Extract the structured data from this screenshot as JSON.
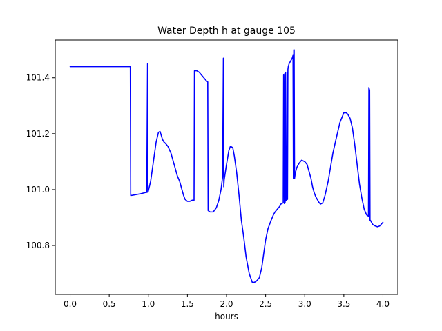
{
  "chart_data": {
    "type": "line",
    "title": "Water Depth h at gauge 105",
    "xlabel": "hours",
    "ylabel": "",
    "xlim": [
      -0.19,
      4.19
    ],
    "ylim": [
      100.625,
      101.535
    ],
    "xticks": [
      0.0,
      0.5,
      1.0,
      1.5,
      2.0,
      2.5,
      3.0,
      3.5,
      4.0
    ],
    "xtick_labels": [
      "0.0",
      "0.5",
      "1.0",
      "1.5",
      "2.0",
      "2.5",
      "3.0",
      "3.5",
      "4.0"
    ],
    "yticks": [
      100.8,
      101.0,
      101.2,
      101.4
    ],
    "ytick_labels": [
      "100.8",
      "101.0",
      "101.2",
      "101.4"
    ],
    "grid": false,
    "series": [
      {
        "name": "",
        "color": "#0000ff",
        "x": [
          0.0,
          0.4,
          0.6,
          0.77,
          0.775,
          0.8,
          0.9,
          0.97,
          0.98,
          0.99,
          0.995,
          1.0,
          1.03,
          1.07,
          1.1,
          1.13,
          1.15,
          1.17,
          1.18,
          1.2,
          1.22,
          1.25,
          1.29,
          1.33,
          1.37,
          1.4,
          1.42,
          1.45,
          1.47,
          1.5,
          1.53,
          1.56,
          1.585,
          1.59,
          1.62,
          1.65,
          1.68,
          1.71,
          1.74,
          1.76,
          1.765,
          1.79,
          1.83,
          1.87,
          1.9,
          1.93,
          1.95,
          1.96,
          1.965,
          1.97,
          2.0,
          2.03,
          2.05,
          2.08,
          2.1,
          2.13,
          2.16,
          2.19,
          2.22,
          2.25,
          2.29,
          2.33,
          2.35,
          2.37,
          2.39,
          2.42,
          2.45,
          2.48,
          2.5,
          2.53,
          2.57,
          2.6,
          2.62,
          2.65,
          2.68,
          2.7,
          2.725,
          2.73,
          2.74,
          2.745,
          2.75,
          2.755,
          2.76,
          2.77,
          2.775,
          2.78,
          2.785,
          2.79,
          2.8,
          2.82,
          2.84,
          2.85,
          2.855,
          2.86,
          2.865,
          2.87,
          2.875,
          2.88,
          2.89,
          2.9,
          2.93,
          2.96,
          3.0,
          3.03,
          3.06,
          3.08,
          3.1,
          3.12,
          3.14,
          3.16,
          3.18,
          3.2,
          3.23,
          3.26,
          3.3,
          3.33,
          3.36,
          3.4,
          3.45,
          3.5,
          3.53,
          3.55,
          3.58,
          3.61,
          3.64,
          3.67,
          3.7,
          3.73,
          3.76,
          3.79,
          3.815,
          3.82,
          3.825,
          3.83,
          3.835,
          3.84,
          3.85,
          3.87,
          3.9,
          3.93,
          3.96,
          4.0
        ],
        "y": [
          101.44,
          101.44,
          101.44,
          101.44,
          100.979,
          100.98,
          100.985,
          100.99,
          100.99,
          101.45,
          100.99,
          100.995,
          101.03,
          101.11,
          101.17,
          101.205,
          101.208,
          101.19,
          101.18,
          101.17,
          101.165,
          101.155,
          101.13,
          101.09,
          101.05,
          101.03,
          101.01,
          100.98,
          100.965,
          100.958,
          100.958,
          100.962,
          100.962,
          101.425,
          101.425,
          101.42,
          101.41,
          101.4,
          101.39,
          101.385,
          100.925,
          100.92,
          100.92,
          100.935,
          100.96,
          101.0,
          101.045,
          101.47,
          101.01,
          101.035,
          101.09,
          101.14,
          101.155,
          101.15,
          101.12,
          101.06,
          100.98,
          100.89,
          100.83,
          100.76,
          100.7,
          100.668,
          100.668,
          100.67,
          100.675,
          100.685,
          100.72,
          100.78,
          100.82,
          100.86,
          100.89,
          100.91,
          100.92,
          100.93,
          100.94,
          100.95,
          100.952,
          101.41,
          100.95,
          101.415,
          100.955,
          101.42,
          100.96,
          100.965,
          101.42,
          100.965,
          101.43,
          101.44,
          101.45,
          101.46,
          101.47,
          101.48,
          101.04,
          101.5,
          101.5,
          101.04,
          101.05,
          101.06,
          101.07,
          101.08,
          101.095,
          101.105,
          101.1,
          101.09,
          101.06,
          101.04,
          101.01,
          100.99,
          100.975,
          100.965,
          100.955,
          100.948,
          100.952,
          100.98,
          101.03,
          101.08,
          101.13,
          101.18,
          101.24,
          101.275,
          101.275,
          101.27,
          101.255,
          101.22,
          101.16,
          101.09,
          101.02,
          100.97,
          100.93,
          100.91,
          100.905,
          101.365,
          101.36,
          101.355,
          100.89,
          100.89,
          100.885,
          100.875,
          100.87,
          100.867,
          100.87,
          100.883
        ]
      }
    ]
  }
}
